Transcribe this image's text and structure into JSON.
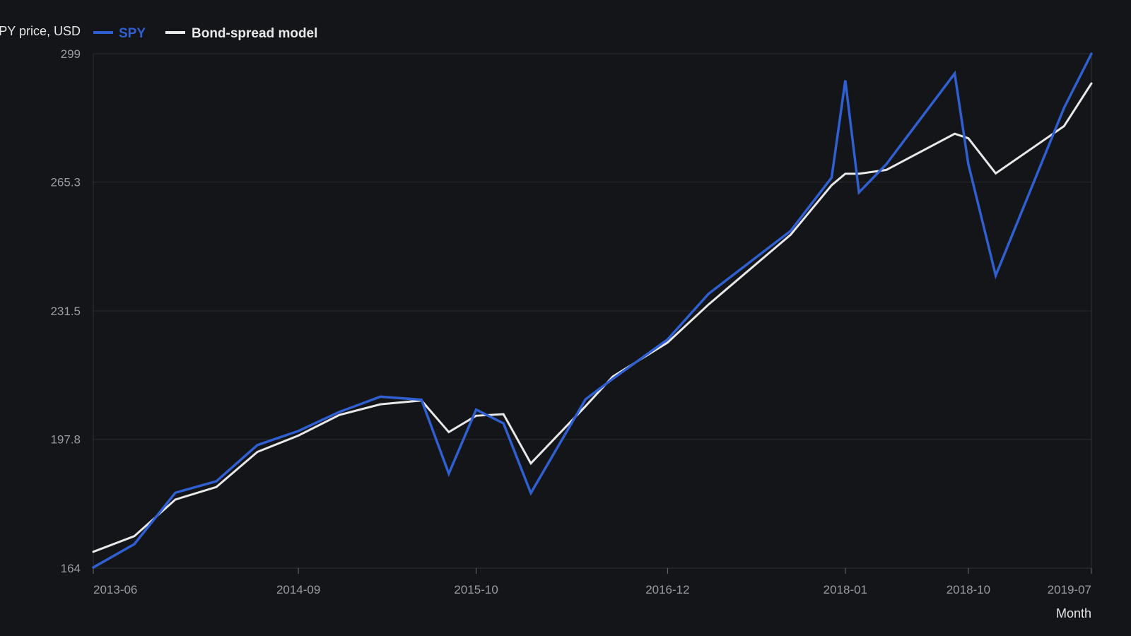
{
  "chart_data": {
    "type": "line",
    "ylabel": "SPY price, USD",
    "xlabel": "Month",
    "ylim": [
      164,
      299
    ],
    "y_ticks": [
      "164",
      "197.8",
      "231.5",
      "265.3",
      "299"
    ],
    "x_ticks": [
      "2013-06",
      "2014-09",
      "2015-10",
      "2016-12",
      "2018-01",
      "2018-10",
      "2019-07"
    ],
    "x": [
      "2013-06",
      "2013-09",
      "2013-12",
      "2014-03",
      "2014-06",
      "2014-09",
      "2014-12",
      "2015-03",
      "2015-06",
      "2015-08",
      "2015-10",
      "2015-12",
      "2016-02",
      "2016-06",
      "2016-08",
      "2016-12",
      "2017-03",
      "2017-09",
      "2017-12",
      "2018-01",
      "2018-02",
      "2018-04",
      "2018-09",
      "2018-10",
      "2018-12",
      "2019-05",
      "2019-07"
    ],
    "grid": true,
    "legend_position": "top-left",
    "series": [
      {
        "name": "SPY",
        "color": "#2f5fd0",
        "values": [
          164.2,
          170.3,
          183.8,
          186.8,
          196.3,
          200.0,
          205.0,
          209.0,
          208.2,
          188.8,
          205.6,
          202.0,
          183.7,
          208.3,
          213.7,
          224.0,
          236.0,
          252.5,
          266.5,
          292.0,
          262.6,
          270.0,
          293.8,
          270.0,
          240.8,
          284.8,
          299.0
        ]
      },
      {
        "name": "Bond-spread model",
        "color": "#e8e8e8",
        "values": [
          168.3,
          172.4,
          182.0,
          185.3,
          194.5,
          198.8,
          204.2,
          207.0,
          208.0,
          199.7,
          204.0,
          204.4,
          191.5,
          206.5,
          214.3,
          223.2,
          233.2,
          251.5,
          264.5,
          267.5,
          267.5,
          268.5,
          278.0,
          276.8,
          267.6,
          280.0,
          291.2
        ]
      }
    ]
  }
}
